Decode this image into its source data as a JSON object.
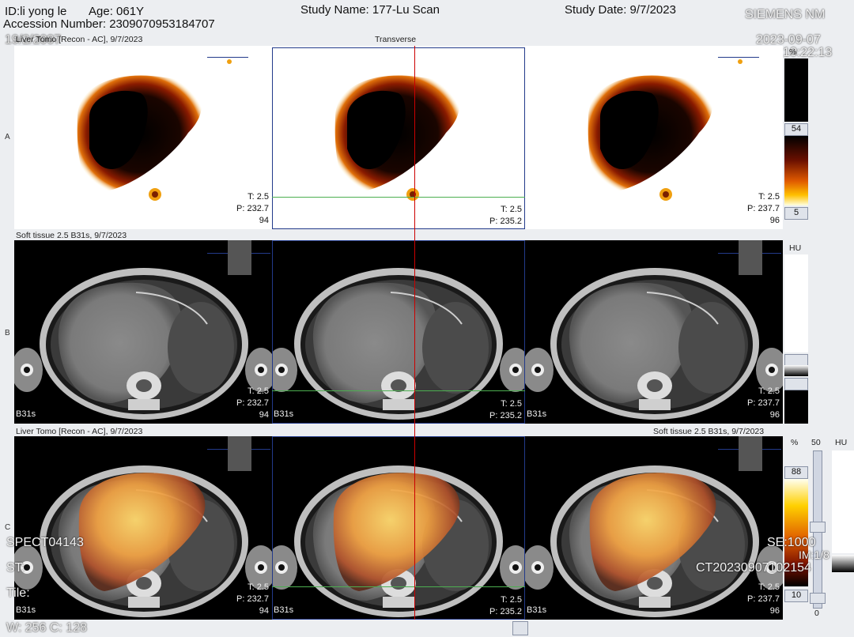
{
  "header": {
    "id": "ID:li yong le",
    "age": "Age: 061Y",
    "accession": "Accession Number: 2309070953184707",
    "study_name": "Study Name: 177-Lu Scan",
    "study_date": "Study Date: 9/7/2023",
    "vendor": "SIEMENS NM",
    "datetime_date": "2023-09-07",
    "datetime_time": "10:22:13",
    "top_left_partial": "19/2/2007"
  },
  "rows": {
    "A": {
      "label": "A",
      "title_left": "Liver Tomo [Recon - AC], 9/7/2023",
      "title_center": "Transverse"
    },
    "B": {
      "label": "B",
      "title_left": "Soft tissue  2.5  B31s, 9/7/2023"
    },
    "C": {
      "label": "C",
      "title_left": "Liver Tomo [Recon - AC], 9/7/2023",
      "title_right": "Soft tissue  2.5  B31s, 9/7/2023"
    }
  },
  "pane_values": {
    "left": {
      "t": "T: 2.5",
      "p": "P: 232.7",
      "n": "94"
    },
    "center": {
      "t": "T: 2.5",
      "p": "P: 235.2"
    },
    "right": {
      "t": "T: 2.5",
      "p": "P: 237.7",
      "n": "96"
    }
  },
  "kernel_label": "B31s",
  "scales": {
    "spect_unit": "%",
    "spect_max": "54",
    "spect_min": "5",
    "ct_unit": "HU",
    "fused_unit": "%",
    "fused_max": "88",
    "fused_min": "10",
    "fused_ct_max": "50",
    "fused_ct_min": "0",
    "fused_hu": "HU"
  },
  "overlay": {
    "spect_series": "SPECT04143",
    "st": "ST:",
    "tile": "Tile:",
    "se": "SE:1000",
    "im": "IM:1/8",
    "ct_series": "CT20230907102154",
    "window": "W: 256  C: 128"
  },
  "colors": {
    "crosshair_vertical": "#c00000",
    "crosshair_horizontal": "#4caf50",
    "frame": "#223a8a"
  }
}
